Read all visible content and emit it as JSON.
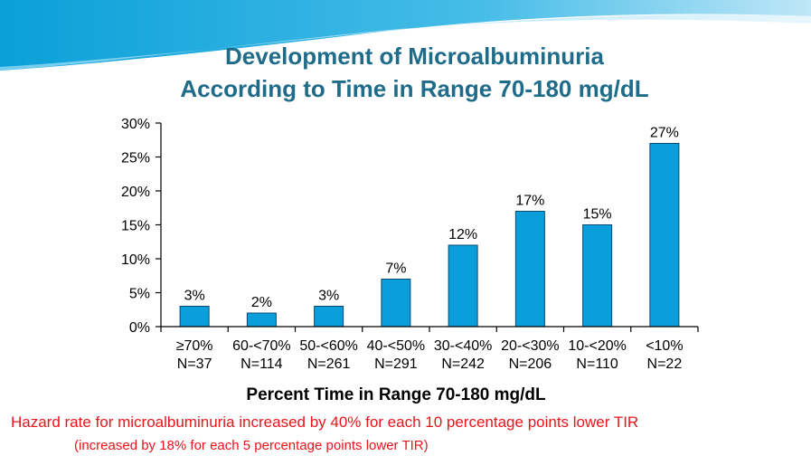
{
  "slide": {
    "title_line1": "Development of Microalbuminuria",
    "title_line2": "According to Time in Range 70-180 mg/dL",
    "note_line1": "Hazard rate for microalbuminuria increased by 40% for each 10 percentage points lower TIR",
    "note_line2": "(increased by 18% for each 5 percentage points lower TIR)"
  },
  "colors": {
    "title": "#1f6b8a",
    "bar": "#0a9fdb",
    "bar_stroke": "#0b4a75",
    "note": "#e8151b",
    "banner_dark": "#0aa0d8",
    "banner_light": "#9fdaf2"
  },
  "chart_data": {
    "type": "bar",
    "categories": [
      "≥70%",
      "60-<70%",
      "50-<60%",
      "40-<50%",
      "30-<40%",
      "20-<30%",
      "10-<20%",
      "<10%"
    ],
    "sublabels": [
      "N=37",
      "N=114",
      "N=261",
      "N=291",
      "N=242",
      "N=206",
      "N=110",
      "N=22"
    ],
    "values": [
      3,
      2,
      3,
      7,
      12,
      17,
      15,
      27
    ],
    "data_labels": [
      "3%",
      "2%",
      "3%",
      "7%",
      "12%",
      "17%",
      "15%",
      "27%"
    ],
    "xlabel": "Percent Time in Range 70-180 mg/dL",
    "ylabel": "",
    "ylim": [
      0,
      30
    ],
    "yticks": [
      0,
      5,
      10,
      15,
      20,
      25,
      30
    ],
    "ytick_labels": [
      "0%",
      "5%",
      "10%",
      "15%",
      "20%",
      "25%",
      "30%"
    ],
    "grid": false,
    "legend": "none"
  }
}
